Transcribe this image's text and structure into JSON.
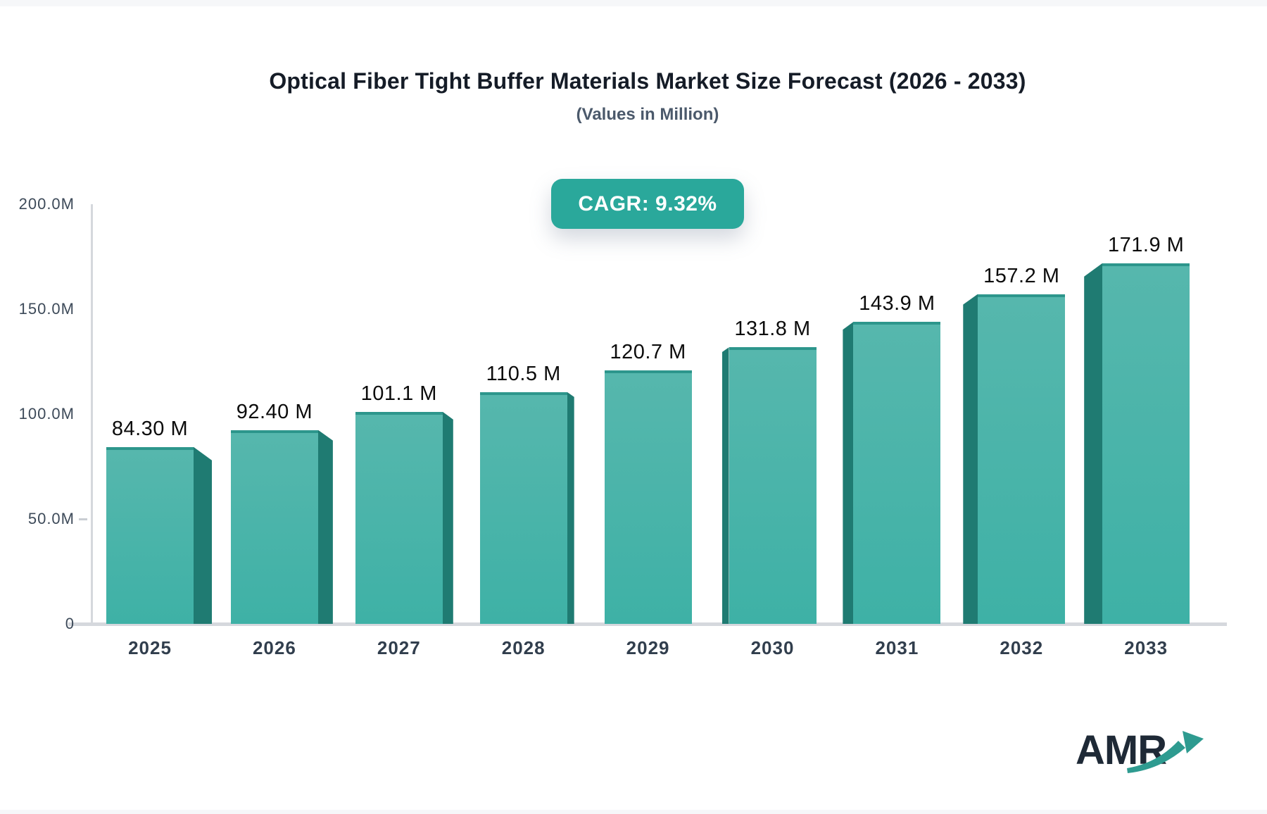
{
  "header": {
    "title": "Optical Fiber Tight Buffer Materials Market Size Forecast (2026 - 2033)",
    "subtitle": "(Values in Million)",
    "cagr_label": "CAGR: 9.32%"
  },
  "brand": {
    "name": "AMR",
    "arrow_icon": "growth-arrow-icon"
  },
  "colors": {
    "bar_front_top": "#56b7ad",
    "bar_front_bottom": "#3eb1a6",
    "bar_side": "#1f7b72",
    "bar_top_edge": "#2d968c",
    "badge_bg": "#2aa89b",
    "badge_text": "#ffffff",
    "axis_line": "#d5d8dd",
    "title_text": "#151c27",
    "subtitle_text": "#4b596b",
    "axis_text": "#3d4a59",
    "value_label_text": "#0c0c0c",
    "logo_text": "#1e2936",
    "logo_arrow": "#2e9b90"
  },
  "chart_data": {
    "type": "bar",
    "title": "Optical Fiber Tight Buffer Materials Market Size Forecast (2026 - 2033)",
    "subtitle": "(Values in Million)",
    "unit": "M",
    "cagr": "9.32%",
    "categories": [
      "2025",
      "2026",
      "2027",
      "2028",
      "2029",
      "2030",
      "2031",
      "2032",
      "2033"
    ],
    "values": [
      84.3,
      92.4,
      101.1,
      110.5,
      120.7,
      131.8,
      143.9,
      157.2,
      171.9
    ],
    "value_labels": [
      "84.30 M",
      "92.40 M",
      "101.1 M",
      "110.5 M",
      "120.7 M",
      "131.8 M",
      "143.9 M",
      "157.2 M",
      "171.9 M"
    ],
    "y_tick_labels": [
      "200.0M",
      "150.0M",
      "100.0M",
      "50.0M",
      "0"
    ],
    "y_tick_values": [
      200,
      150,
      100,
      50,
      0
    ],
    "ylim": [
      0,
      200
    ],
    "grid": false,
    "legend": false,
    "bar_style": "3d-perspective"
  }
}
